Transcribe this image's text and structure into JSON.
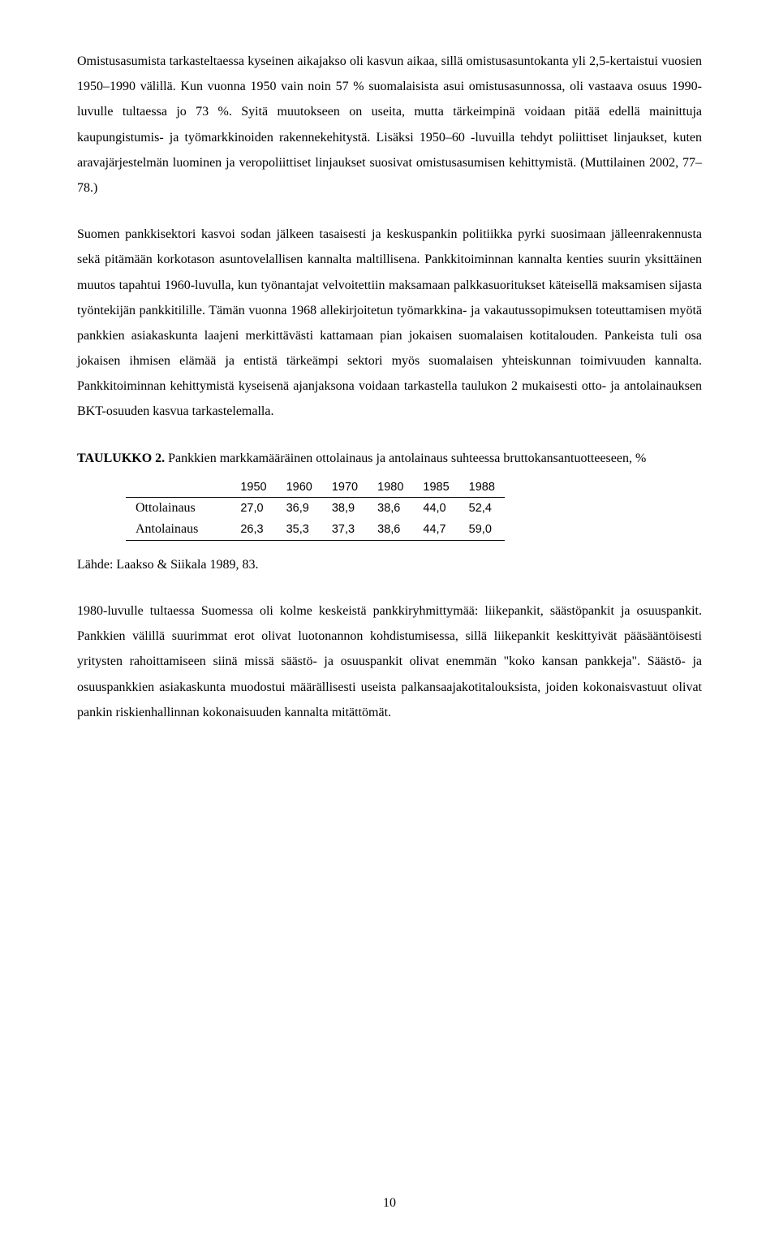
{
  "paragraphs": {
    "p1": "Omistusasumista tarkasteltaessa kyseinen aikajakso oli kasvun aikaa, sillä omistusasuntokanta yli 2,5-kertaistui vuosien 1950–1990 välillä. Kun vuonna 1950 vain noin 57 % suomalaisista asui omistusasunnossa, oli vastaava osuus 1990-luvulle tultaessa jo 73 %. Syitä muutokseen on useita, mutta tärkeimpinä voidaan pitää edellä mainittuja kaupungistumis- ja työmarkkinoiden rakennekehitystä. Lisäksi 1950–60 -luvuilla tehdyt poliittiset linjaukset, kuten aravajärjestelmän luominen ja veropoliittiset linjaukset suosivat omistusasumisen kehittymistä. (Muttilainen 2002, 77–78.)",
    "p2": "Suomen pankkisektori kasvoi sodan jälkeen tasaisesti ja keskuspankin politiikka pyrki suosimaan jälleenrakennusta sekä pitämään korkotason asuntovelallisen kannalta maltillisena. Pankkitoiminnan kannalta kenties suurin yksittäinen muutos tapahtui 1960-luvulla, kun työnantajat velvoitettiin maksamaan palkkasuoritukset käteisellä maksamisen sijasta työntekijän pankkitilille. Tämän vuonna 1968 allekirjoitetun työmarkkina- ja vakautussopimuksen toteuttamisen myötä pankkien asiakaskunta laajeni merkittävästi kattamaan pian jokaisen suomalaisen kotitalouden. Pankeista tuli osa jokaisen ihmisen elämää ja entistä tärkeämpi sektori myös suomalaisen yhteiskunnan toimivuuden kannalta. Pankkitoiminnan kehittymistä kyseisenä ajanjaksona voidaan tarkastella taulukon 2 mukaisesti otto- ja antolainauksen BKT-osuuden kasvua tarkastelemalla.",
    "p3": "1980-luvulle tultaessa Suomessa oli kolme keskeistä pankkiryhmittymää: liikepankit, säästöpankit ja osuuspankit. Pankkien välillä suurimmat erot olivat luotonannon kohdistumisessa, sillä liikepankit keskittyivät pääsääntöisesti yritysten rahoittamiseen siinä missä säästö- ja osuuspankit olivat enemmän \"koko kansan pankkeja\". Säästö- ja osuuspankkien asiakaskunta muodostui määrällisesti useista palkansaajakotitalouksista, joiden kokonaisvastuut olivat pankin riskienhallinnan kokonaisuuden kannalta mitättömät."
  },
  "table2": {
    "caption_bold": "TAULUKKO 2.",
    "caption_rest": " Pankkien markkamääräinen ottolainaus ja antolainaus suhteessa bruttokansantuotteeseen, %",
    "columns": [
      "1950",
      "1960",
      "1970",
      "1980",
      "1985",
      "1988"
    ],
    "rows": [
      {
        "label": "Ottolainaus",
        "values": [
          "27,0",
          "36,9",
          "38,9",
          "38,6",
          "44,0",
          "52,4"
        ]
      },
      {
        "label": "Antolainaus",
        "values": [
          "26,3",
          "35,3",
          "37,3",
          "38,6",
          "44,7",
          "59,0"
        ]
      }
    ],
    "source": "Lähde: Laakso & Siikala 1989, 83."
  },
  "page_number": "10"
}
